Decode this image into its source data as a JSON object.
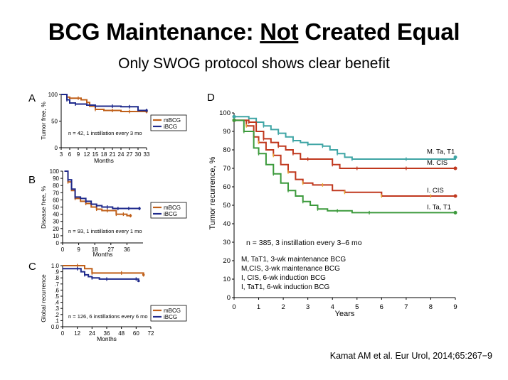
{
  "slide": {
    "title_part1": "BCG Maintenance: ",
    "title_part2": "Not",
    "title_part3": " Created Equal",
    "subtitle": "Only SWOG protocol shows clear benefit",
    "citation": "Kamat AM et al. Eur Urol, 2014;65:267−9"
  },
  "colors": {
    "orange": "#C0601A",
    "navy": "#1F2A8C",
    "teal": "#3FA5A5",
    "red": "#C0381E",
    "green": "#3C9A3C",
    "tick": "#E8B030"
  },
  "chart_data": [
    {
      "panel": "A",
      "type": "line",
      "ylabel": "Tumor free, %",
      "xlabel": "Months",
      "xlim": [
        3,
        33
      ],
      "ylim": [
        0,
        100
      ],
      "xticks": [
        3,
        6,
        9,
        12,
        15,
        18,
        21,
        24,
        27,
        30,
        33
      ],
      "xtick_labels": [
        "3",
        "6",
        "9",
        "12",
        "15",
        "18",
        "21",
        "24",
        "27",
        "30",
        "33"
      ],
      "yticks": [
        0,
        50,
        100
      ],
      "ytick_labels": [
        "0",
        "50",
        "100"
      ],
      "annotation": "n = 42, 1 instillation every 3 mo",
      "series": [
        {
          "name": "mBCG",
          "color": "#C0601A",
          "x": [
            3,
            5,
            6,
            9,
            10,
            12,
            13,
            15,
            18,
            21,
            24,
            27,
            30,
            33
          ],
          "y": [
            100,
            95,
            93,
            93,
            90,
            85,
            78,
            72,
            70,
            70,
            68,
            68,
            68,
            68
          ]
        },
        {
          "name": "iBCG",
          "color": "#1F2A8C",
          "x": [
            3,
            5,
            6,
            8,
            12,
            15,
            18,
            21,
            24,
            27,
            30,
            33
          ],
          "y": [
            100,
            90,
            84,
            82,
            80,
            78,
            78,
            78,
            77,
            77,
            70,
            70
          ]
        }
      ]
    },
    {
      "panel": "B",
      "type": "line",
      "ylabel": "Disease free, %",
      "xlabel": "Months",
      "xlim": [
        0,
        45
      ],
      "ylim": [
        0,
        100
      ],
      "xticks": [
        0,
        9,
        18,
        27,
        36
      ],
      "xtick_labels": [
        "0",
        "9",
        "18",
        "27",
        "36"
      ],
      "yticks": [
        0,
        10,
        20,
        30,
        40,
        50,
        60,
        70,
        80,
        90,
        100
      ],
      "ytick_labels": [
        "0",
        "10",
        "20",
        "30",
        "40",
        "50",
        "60",
        "70",
        "80",
        "90",
        "100"
      ],
      "annotation": "n = 93, 1 instillation every 1 mo",
      "series": [
        {
          "name": "mBCG",
          "color": "#C0601A",
          "x": [
            1,
            3,
            5,
            7,
            10,
            13,
            16,
            19,
            22,
            25,
            28,
            30,
            32,
            34,
            36,
            38
          ],
          "y": [
            100,
            85,
            73,
            62,
            58,
            55,
            50,
            47,
            45,
            45,
            45,
            40,
            40,
            40,
            38,
            38
          ]
        },
        {
          "name": "iBCG",
          "color": "#1F2A8C",
          "x": [
            1,
            3,
            5,
            7,
            10,
            13,
            16,
            19,
            22,
            25,
            28,
            31,
            34,
            37,
            40,
            43
          ],
          "y": [
            100,
            88,
            75,
            64,
            62,
            58,
            54,
            52,
            50,
            50,
            48,
            48,
            48,
            48,
            48,
            48
          ]
        }
      ]
    },
    {
      "panel": "C",
      "type": "line",
      "ylabel": "Global recurrence",
      "xlabel": "Months",
      "xlim": [
        0,
        72
      ],
      "ylim": [
        0,
        1.0
      ],
      "xticks": [
        0,
        12,
        24,
        36,
        48,
        60,
        72
      ],
      "xtick_labels": [
        "0",
        "12",
        "24",
        "36",
        "48",
        "60",
        "72"
      ],
      "yticks": [
        0,
        0.1,
        0.2,
        0.3,
        0.4,
        0.5,
        0.6,
        0.7,
        0.8,
        0.9,
        1.0
      ],
      "ytick_labels": [
        "0.0",
        ".1",
        ".2",
        ".3",
        ".4",
        ".5",
        ".6",
        ".7",
        ".8",
        ".9",
        "1.0"
      ],
      "annotation": "n = 126, 6 instillations every 6 mo",
      "series": [
        {
          "name": "mBCG",
          "color": "#C0601A",
          "x": [
            0,
            12,
            18,
            24,
            36,
            48,
            60,
            66
          ],
          "y": [
            1.0,
            1.0,
            0.95,
            0.88,
            0.88,
            0.88,
            0.88,
            0.85
          ]
        },
        {
          "name": "iBCG",
          "color": "#1F2A8C",
          "x": [
            0,
            12,
            15,
            18,
            21,
            24,
            30,
            36,
            48,
            60,
            62
          ],
          "y": [
            0.95,
            0.95,
            0.9,
            0.85,
            0.82,
            0.8,
            0.78,
            0.78,
            0.78,
            0.78,
            0.75
          ]
        }
      ]
    },
    {
      "panel": "D",
      "type": "line",
      "ylabel": "Tumor recurrence, %",
      "xlabel": "Years",
      "xlim": [
        0,
        9
      ],
      "ylim": [
        0,
        100
      ],
      "xticks": [
        0,
        1,
        2,
        3,
        4,
        5,
        6,
        7,
        8,
        9
      ],
      "xtick_labels": [
        "0",
        "1",
        "2",
        "3",
        "4",
        "5",
        "6",
        "7",
        "8",
        "9"
      ],
      "yticks": [
        0,
        10,
        20,
        30,
        40,
        50,
        60,
        70,
        80,
        90,
        100
      ],
      "ytick_labels": [
        "0",
        "10",
        "20",
        "30",
        "40",
        "50",
        "60",
        "70",
        "80",
        "90",
        "100"
      ],
      "annotation": "n = 385, 3 instillation every 3–6 mo",
      "legend_lines": [
        "M, TaT1, 3-wk maintenance BCG",
        "M,CIS, 3-wk maintenance BCG",
        "I, CIS, 6-wk induction BCG",
        "I, TaT1, 6-wk induction BCG"
      ],
      "series": [
        {
          "name": "M. Ta, T1",
          "color": "#3FA5A5",
          "x": [
            0,
            0.6,
            0.9,
            1.2,
            1.5,
            1.8,
            2.1,
            2.4,
            2.7,
            3.0,
            3.3,
            3.6,
            3.9,
            4.2,
            4.5,
            4.8,
            5.5,
            7.0,
            9.0
          ],
          "y": [
            98,
            97,
            95,
            93,
            91,
            89,
            87,
            85,
            84,
            83,
            83,
            82,
            80,
            78,
            76,
            75,
            75,
            75,
            76
          ]
        },
        {
          "name": "M. CIS",
          "color": "#C0381E",
          "x": [
            0,
            0.6,
            0.9,
            1.2,
            1.5,
            1.8,
            2.1,
            2.4,
            2.7,
            3.0,
            3.5,
            4.0,
            4.3,
            5.0,
            6.0,
            7.0,
            8.0,
            9.0
          ],
          "y": [
            96,
            95,
            90,
            86,
            84,
            82,
            80,
            78,
            75,
            75,
            75,
            72,
            70,
            70,
            70,
            70,
            70,
            70
          ]
        },
        {
          "name": "I. CIS",
          "color": "#C0381E",
          "x": [
            0,
            0.5,
            0.8,
            1.0,
            1.3,
            1.6,
            1.9,
            2.2,
            2.5,
            2.8,
            3.2,
            3.6,
            4.0,
            4.5,
            5.0,
            6.0,
            7.0,
            8.0,
            9.0
          ],
          "y": [
            96,
            93,
            87,
            84,
            80,
            77,
            72,
            68,
            64,
            62,
            61,
            61,
            58,
            57,
            57,
            55,
            55,
            55,
            55
          ]
        },
        {
          "name": "I. Ta, T1",
          "color": "#3C9A3C",
          "x": [
            0,
            0.4,
            0.8,
            1.0,
            1.3,
            1.6,
            1.9,
            2.2,
            2.5,
            2.8,
            3.1,
            3.4,
            3.8,
            4.2,
            4.8,
            5.5,
            7.0,
            9.0
          ],
          "y": [
            96,
            90,
            81,
            78,
            72,
            67,
            62,
            58,
            55,
            52,
            50,
            48,
            47,
            47,
            46,
            46,
            46,
            46
          ]
        }
      ]
    }
  ]
}
